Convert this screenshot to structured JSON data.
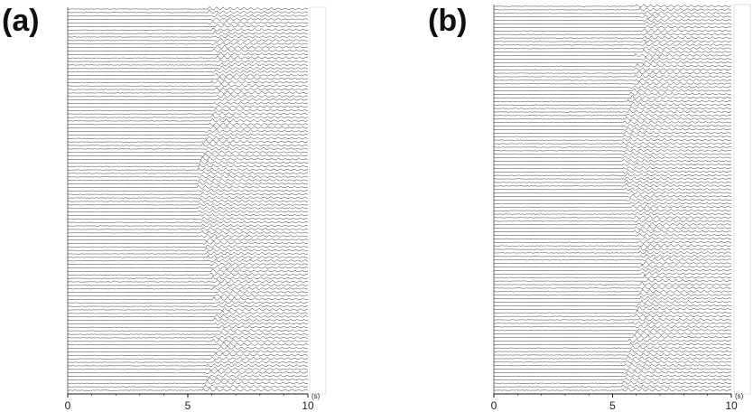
{
  "chart_data": [
    {
      "type": "line",
      "panel_label": "(a)",
      "xlabel": "",
      "x_unit": "(s)",
      "xlim": [
        0,
        10
      ],
      "x_ticks": [
        0,
        5,
        10
      ],
      "channel_count": 110,
      "grid": false,
      "legend": "none",
      "trace_color": "#1a1a1a",
      "arrival_time_range_s": [
        5.4,
        6.4
      ]
    },
    {
      "type": "line",
      "panel_label": "(b)",
      "xlabel": "",
      "x_unit": "(s)",
      "xlim": [
        0,
        10
      ],
      "x_ticks": [
        0,
        5,
        10
      ],
      "channel_count": 110,
      "grid": false,
      "legend": "none",
      "trace_color": "#1a1a1a",
      "arrival_time_range_s": [
        5.4,
        6.4
      ]
    }
  ]
}
